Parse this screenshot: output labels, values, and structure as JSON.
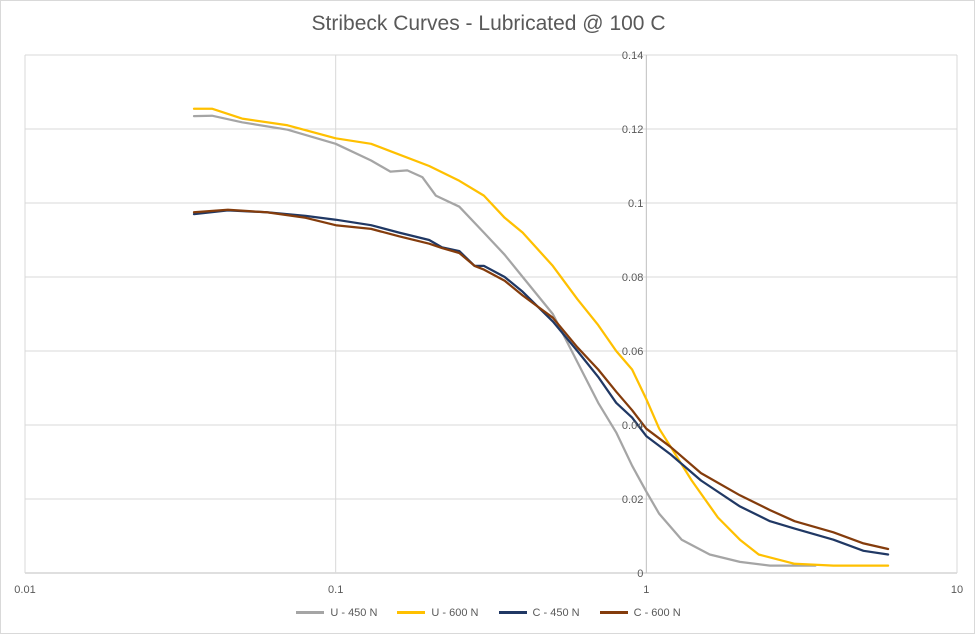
{
  "chart_data": {
    "type": "line",
    "title": "Stribeck Curves - Lubricated @ 100 C",
    "xlabel": "",
    "ylabel": "",
    "xscale": "log",
    "xlim": [
      0.01,
      10
    ],
    "ylim": [
      0,
      0.14
    ],
    "grid": true,
    "legend": "bottom",
    "x_ticks": [
      0.01,
      0.1,
      1,
      10
    ],
    "x_tick_labels": [
      "0.01",
      "0.1",
      "1",
      "10"
    ],
    "y_ticks": [
      0,
      0.02,
      0.04,
      0.06,
      0.08,
      0.1,
      0.12,
      0.14
    ],
    "y_tick_labels": [
      "0",
      "0.02",
      "0.04",
      "0.06",
      "0.08",
      "0.1",
      "0.12",
      "0.14"
    ],
    "series": [
      {
        "name": "U - 450 N",
        "color": "#a5a5a5",
        "points": [
          [
            0.035,
            0.1235
          ],
          [
            0.04,
            0.1236
          ],
          [
            0.05,
            0.1218
          ],
          [
            0.07,
            0.1198
          ],
          [
            0.1,
            0.116
          ],
          [
            0.13,
            0.1115
          ],
          [
            0.15,
            0.1085
          ],
          [
            0.17,
            0.1088
          ],
          [
            0.19,
            0.107
          ],
          [
            0.21,
            0.102
          ],
          [
            0.25,
            0.099
          ],
          [
            0.3,
            0.092
          ],
          [
            0.35,
            0.086
          ],
          [
            0.4,
            0.08
          ],
          [
            0.5,
            0.07
          ],
          [
            0.6,
            0.057
          ],
          [
            0.7,
            0.046
          ],
          [
            0.8,
            0.038
          ],
          [
            0.9,
            0.029
          ],
          [
            1.0,
            0.022
          ],
          [
            1.1,
            0.016
          ],
          [
            1.3,
            0.009
          ],
          [
            1.6,
            0.005
          ],
          [
            2.0,
            0.003
          ],
          [
            2.5,
            0.002
          ],
          [
            3.5,
            0.002
          ]
        ]
      },
      {
        "name": "U - 600 N",
        "color": "#ffc000",
        "points": [
          [
            0.035,
            0.1255
          ],
          [
            0.04,
            0.1255
          ],
          [
            0.05,
            0.1228
          ],
          [
            0.07,
            0.121
          ],
          [
            0.1,
            0.1175
          ],
          [
            0.13,
            0.116
          ],
          [
            0.15,
            0.114
          ],
          [
            0.2,
            0.11
          ],
          [
            0.25,
            0.106
          ],
          [
            0.3,
            0.102
          ],
          [
            0.35,
            0.096
          ],
          [
            0.4,
            0.092
          ],
          [
            0.5,
            0.083
          ],
          [
            0.6,
            0.074
          ],
          [
            0.7,
            0.067
          ],
          [
            0.8,
            0.06
          ],
          [
            0.9,
            0.055
          ],
          [
            1.0,
            0.047
          ],
          [
            1.1,
            0.039
          ],
          [
            1.2,
            0.034
          ],
          [
            1.4,
            0.025
          ],
          [
            1.7,
            0.015
          ],
          [
            2.0,
            0.009
          ],
          [
            2.3,
            0.005
          ],
          [
            3.0,
            0.0025
          ],
          [
            4.0,
            0.002
          ],
          [
            6.0,
            0.002
          ]
        ]
      },
      {
        "name": "C - 450 N",
        "color": "#203864",
        "points": [
          [
            0.035,
            0.097
          ],
          [
            0.045,
            0.098
          ],
          [
            0.06,
            0.0975
          ],
          [
            0.08,
            0.0965
          ],
          [
            0.1,
            0.0955
          ],
          [
            0.13,
            0.094
          ],
          [
            0.16,
            0.092
          ],
          [
            0.2,
            0.09
          ],
          [
            0.22,
            0.088
          ],
          [
            0.25,
            0.087
          ],
          [
            0.28,
            0.083
          ],
          [
            0.3,
            0.083
          ],
          [
            0.35,
            0.08
          ],
          [
            0.4,
            0.076
          ],
          [
            0.5,
            0.068
          ],
          [
            0.6,
            0.06
          ],
          [
            0.7,
            0.053
          ],
          [
            0.8,
            0.046
          ],
          [
            0.9,
            0.042
          ],
          [
            1.0,
            0.037
          ],
          [
            1.2,
            0.032
          ],
          [
            1.5,
            0.025
          ],
          [
            2.0,
            0.018
          ],
          [
            2.5,
            0.014
          ],
          [
            3.0,
            0.012
          ],
          [
            4.0,
            0.009
          ],
          [
            5.0,
            0.006
          ],
          [
            6.0,
            0.005
          ]
        ]
      },
      {
        "name": "C - 600 N",
        "color": "#843c0c",
        "points": [
          [
            0.035,
            0.0975
          ],
          [
            0.045,
            0.0982
          ],
          [
            0.06,
            0.0975
          ],
          [
            0.08,
            0.096
          ],
          [
            0.1,
            0.094
          ],
          [
            0.13,
            0.093
          ],
          [
            0.16,
            0.091
          ],
          [
            0.2,
            0.089
          ],
          [
            0.22,
            0.0878
          ],
          [
            0.25,
            0.0865
          ],
          [
            0.28,
            0.083
          ],
          [
            0.3,
            0.082
          ],
          [
            0.35,
            0.079
          ],
          [
            0.4,
            0.075
          ],
          [
            0.5,
            0.069
          ],
          [
            0.6,
            0.061
          ],
          [
            0.7,
            0.055
          ],
          [
            0.8,
            0.049
          ],
          [
            0.9,
            0.044
          ],
          [
            1.0,
            0.039
          ],
          [
            1.2,
            0.034
          ],
          [
            1.5,
            0.027
          ],
          [
            2.0,
            0.021
          ],
          [
            2.5,
            0.017
          ],
          [
            3.0,
            0.014
          ],
          [
            4.0,
            0.011
          ],
          [
            5.0,
            0.008
          ],
          [
            6.0,
            0.0065
          ]
        ]
      }
    ]
  }
}
